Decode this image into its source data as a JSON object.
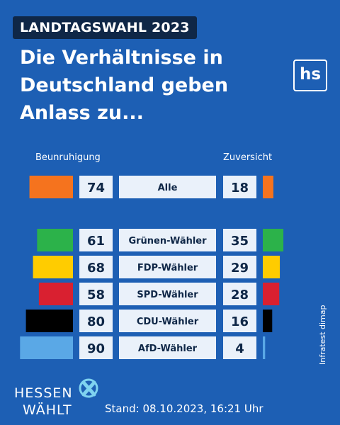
{
  "header": {
    "badge": "LANDTAGSWAHL 2023",
    "title": "Die Verhältnisse in Deutschland geben Anlass zu...",
    "logo_text": "hs"
  },
  "chart_data": {
    "type": "bar",
    "left_label": "Beunruhigung",
    "right_label": "Zuversicht",
    "categories": [
      "Alle",
      "Grünen-Wähler",
      "FDP-Wähler",
      "SPD-Wähler",
      "CDU-Wähler",
      "AfD-Wähler"
    ],
    "series": [
      {
        "name": "Beunruhigung",
        "values": [
          74,
          61,
          68,
          58,
          80,
          90
        ]
      },
      {
        "name": "Zuversicht",
        "values": [
          18,
          35,
          29,
          28,
          16,
          4
        ]
      }
    ],
    "colors": [
      "#f5731e",
      "#2cb24a",
      "#ffcc00",
      "#d92030",
      "#000000",
      "#5aa8e6"
    ],
    "source": "Infratest dimap"
  },
  "footer": {
    "brand_line1": "HESSEN",
    "brand_line2": "WÄHLT",
    "stand": "Stand: 08.10.2023, 16:21 Uhr"
  }
}
